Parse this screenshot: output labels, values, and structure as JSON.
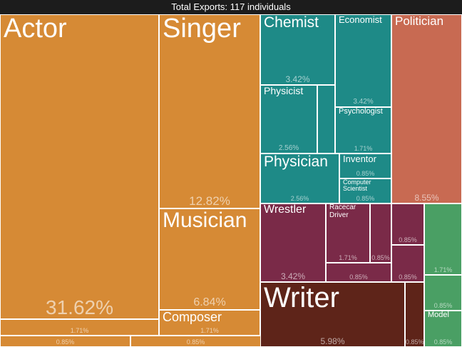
{
  "title": "Total Exports: 117 individuals",
  "colors": {
    "title_bg": "#1c1c1c",
    "orange": "#d68a35",
    "teal": "#1e8a87",
    "red": "#c86a52",
    "maroon": "#7a2a48",
    "green": "#4a9f64",
    "brown": "#5e2419"
  },
  "chart_data": {
    "type": "treemap",
    "title": "Total Exports: 117 individuals",
    "items": [
      {
        "label": "Actor",
        "share": "31.62%",
        "value": 31.62,
        "group": "orange"
      },
      {
        "label": "",
        "share": "1.71%",
        "value": 1.71,
        "group": "orange"
      },
      {
        "label": "",
        "share": "0.85%",
        "value": 0.85,
        "group": "orange"
      },
      {
        "label": "",
        "share": "0.85%",
        "value": 0.85,
        "group": "orange"
      },
      {
        "label": "Singer",
        "share": "12.82%",
        "value": 12.82,
        "group": "orange"
      },
      {
        "label": "Musician",
        "share": "6.84%",
        "value": 6.84,
        "group": "orange"
      },
      {
        "label": "Composer",
        "share": "1.71%",
        "value": 1.71,
        "group": "orange"
      },
      {
        "label": "Chemist",
        "share": "3.42%",
        "value": 3.42,
        "group": "teal"
      },
      {
        "label": "Economist",
        "share": "3.42%",
        "value": 3.42,
        "group": "teal"
      },
      {
        "label": "Physicist",
        "share": "2.56%",
        "value": 2.56,
        "group": "teal"
      },
      {
        "label": "",
        "share": "",
        "value": 0.85,
        "group": "teal"
      },
      {
        "label": "Psychologist",
        "share": "1.71%",
        "value": 1.71,
        "group": "teal"
      },
      {
        "label": "Physician",
        "share": "2.56%",
        "value": 2.56,
        "group": "teal"
      },
      {
        "label": "Inventor",
        "share": "0.85%",
        "value": 0.85,
        "group": "teal"
      },
      {
        "label": "Computer Scientist",
        "share": "0.85%",
        "value": 0.85,
        "group": "teal"
      },
      {
        "label": "Politician",
        "share": "8.55%",
        "value": 8.55,
        "group": "red"
      },
      {
        "label": "Wrestler",
        "share": "3.42%",
        "value": 3.42,
        "group": "maroon"
      },
      {
        "label": "Racecar Driver",
        "share": "1.71%",
        "value": 1.71,
        "group": "maroon"
      },
      {
        "label": "",
        "share": "0.85%",
        "value": 0.85,
        "group": "maroon"
      },
      {
        "label": "",
        "share": "0.85%",
        "value": 0.85,
        "group": "maroon"
      },
      {
        "label": "",
        "share": "0.85%",
        "value": 0.85,
        "group": "maroon"
      },
      {
        "label": "",
        "share": "0.85%",
        "value": 0.85,
        "group": "maroon"
      },
      {
        "label": "",
        "share": "1.71%",
        "value": 1.71,
        "group": "green"
      },
      {
        "label": "",
        "share": "0.85%",
        "value": 0.85,
        "group": "green"
      },
      {
        "label": "Model",
        "share": "0.85%",
        "value": 0.85,
        "group": "green"
      },
      {
        "label": "Writer",
        "share": "5.98%",
        "value": 5.98,
        "group": "brown"
      },
      {
        "label": "",
        "share": "0.85%",
        "value": 0.85,
        "group": "brown"
      }
    ]
  }
}
